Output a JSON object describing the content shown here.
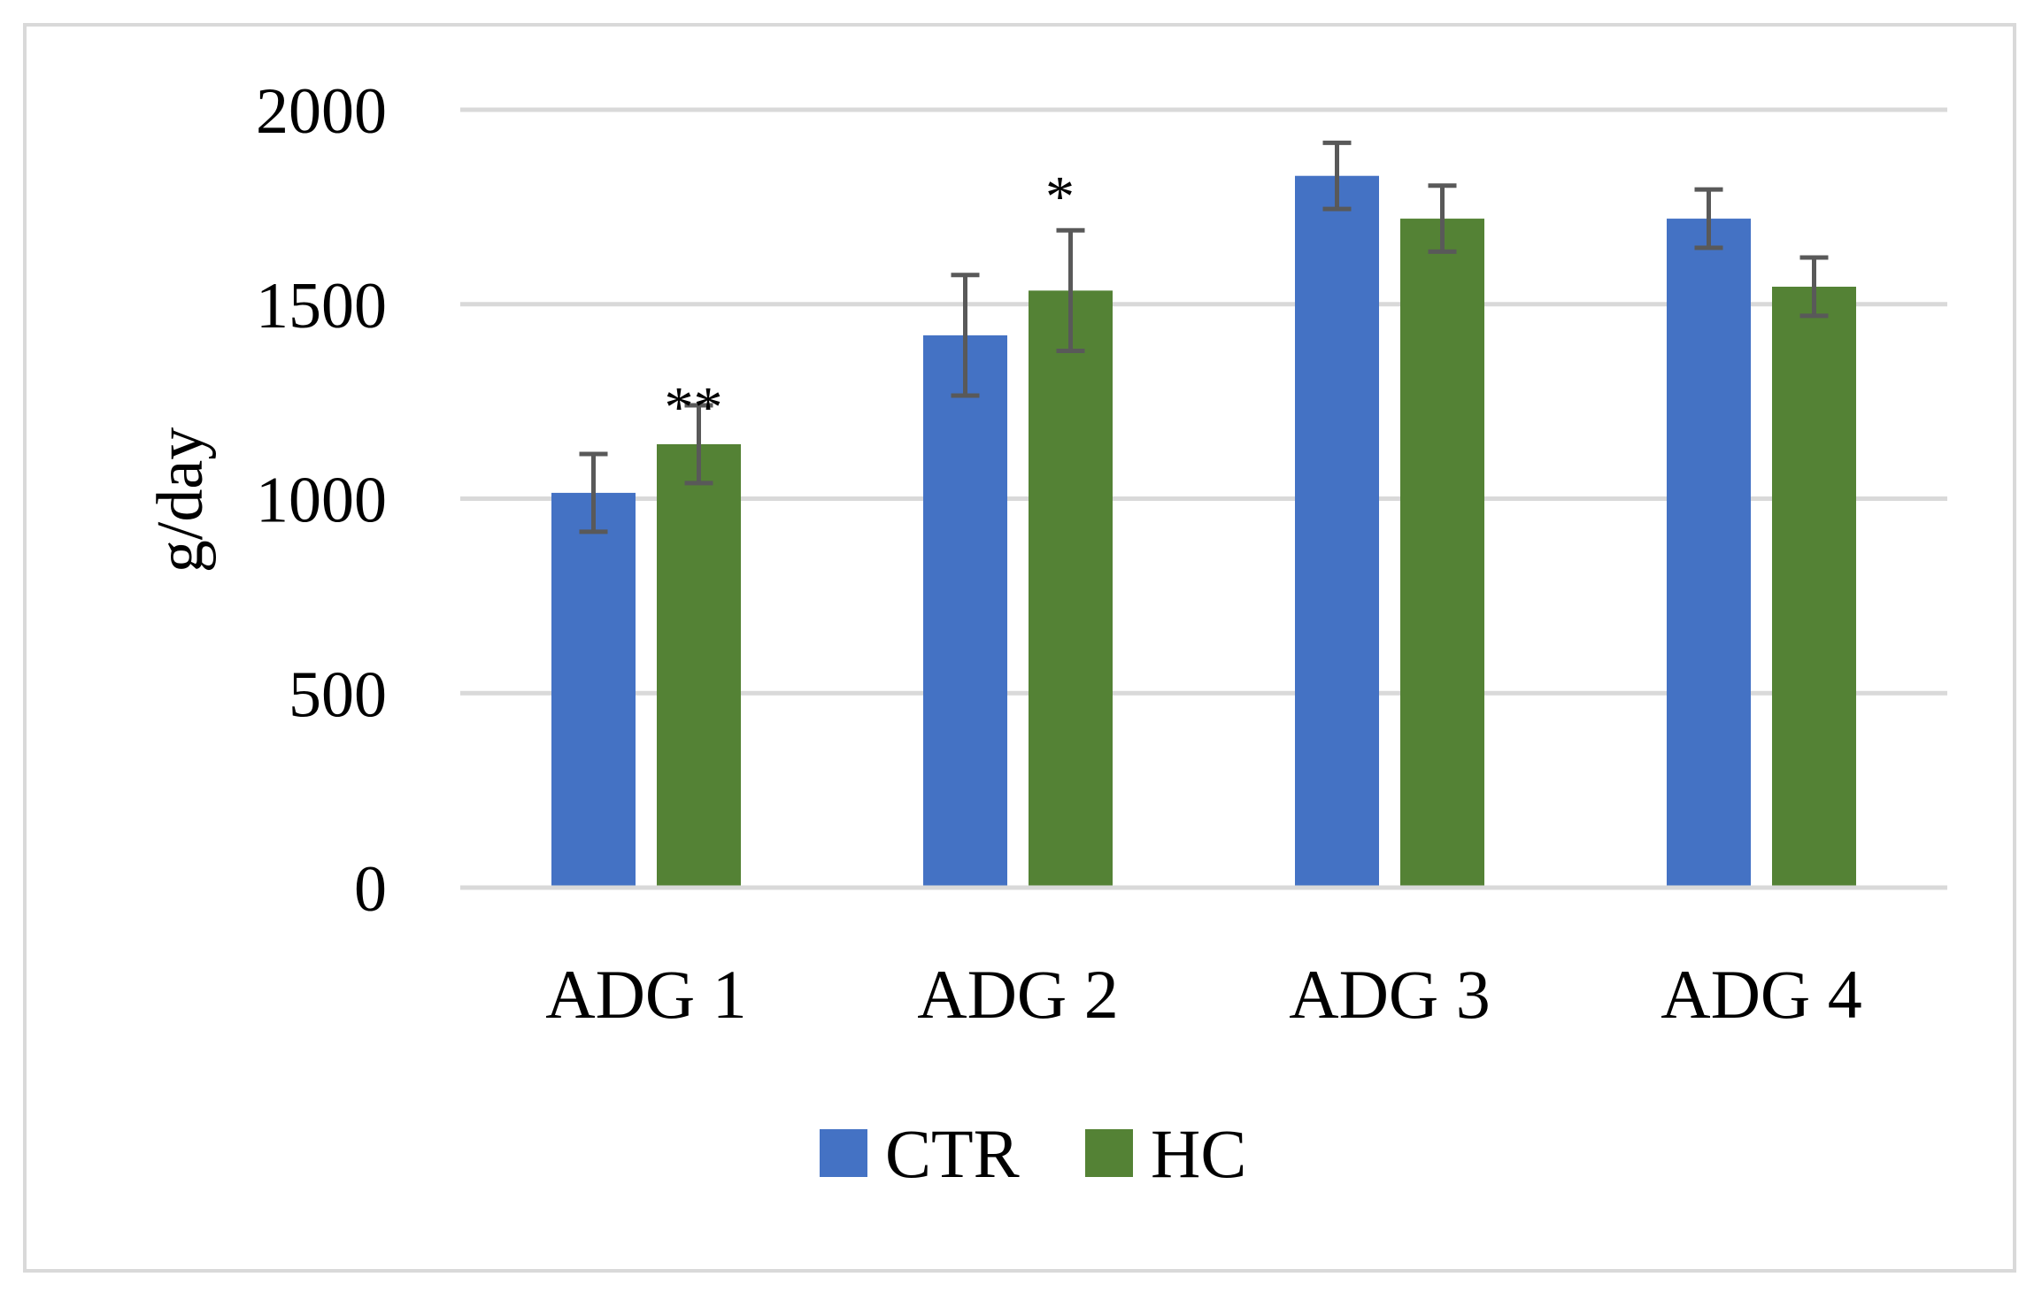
{
  "chart_data": {
    "type": "bar",
    "title": "",
    "xlabel": "",
    "ylabel": "g/day",
    "ylim": [
      0,
      2000
    ],
    "yticks": [
      0,
      500,
      1000,
      1500,
      2000
    ],
    "ytick_labels": [
      "0",
      "500",
      "1000",
      "1500",
      "2000"
    ],
    "grid": true,
    "legend_position": "bottom-center",
    "categories": [
      "ADG 1",
      "ADG 2",
      "ADG 3",
      "ADG 4"
    ],
    "series": [
      {
        "name": "CTR",
        "color": "#4472c4",
        "values": [
          1015,
          1420,
          1830,
          1720
        ],
        "errors": [
          100,
          155,
          85,
          75
        ]
      },
      {
        "name": "HC",
        "color": "#548235",
        "values": [
          1140,
          1535,
          1720,
          1545
        ],
        "errors": [
          100,
          155,
          85,
          75
        ]
      }
    ],
    "error_bar_color": "#595959",
    "annotations": [
      {
        "category_index": 0,
        "series_index": 1,
        "text": "**"
      },
      {
        "category_index": 1,
        "series_index": 1,
        "text": "*"
      }
    ]
  }
}
